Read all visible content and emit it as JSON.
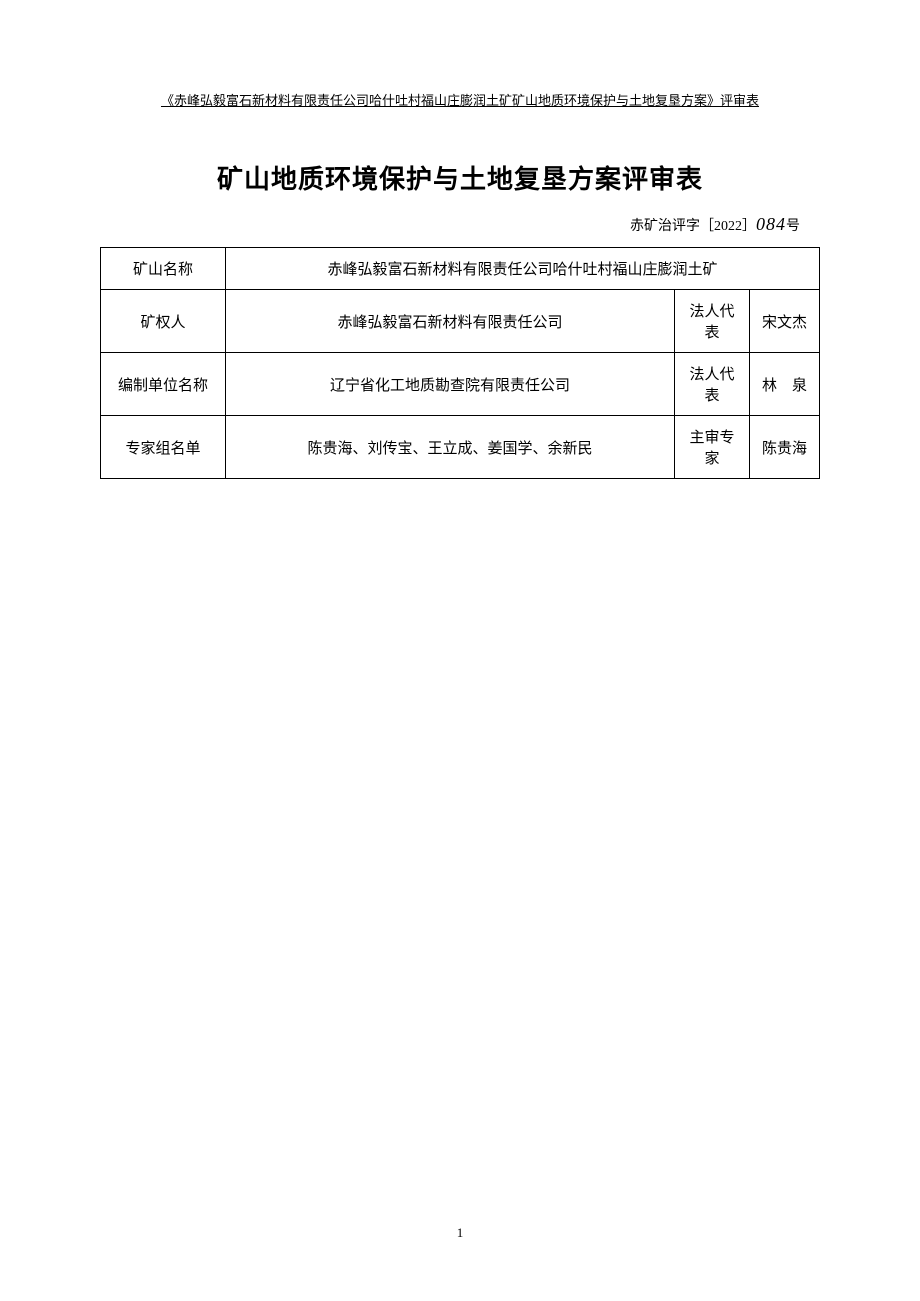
{
  "header": {
    "text": "《赤峰弘毅富石新材料有限责任公司哈什吐村福山庄膨润土矿矿山地质环境保护与土地复垦方案》评审表"
  },
  "title": "矿山地质环境保护与土地复垦方案评审表",
  "docNumber": {
    "prefix": "赤矿治评字［2022］",
    "handwritten": "084",
    "suffix": "号"
  },
  "table": {
    "rows": [
      {
        "label": "矿山名称",
        "value": "赤峰弘毅富石新材料有限责任公司哈什吐村福山庄膨润土矿",
        "colspan": 3
      },
      {
        "label": "矿权人",
        "value": "赤峰弘毅富石新材料有限责任公司",
        "sublabel": "法人代表",
        "subvalue": "宋文杰"
      },
      {
        "label": "编制单位名称",
        "value": "辽宁省化工地质勘查院有限责任公司",
        "sublabel": "法人代表",
        "subvalue": "林　泉"
      },
      {
        "label": "专家组名单",
        "value": "陈贵海、刘传宝、王立成、姜国学、余新民",
        "sublabel": "主审专家",
        "subvalue": "陈贵海"
      }
    ]
  },
  "pageNumber": "1",
  "colors": {
    "background": "#ffffff",
    "text": "#000000",
    "border": "#000000"
  }
}
